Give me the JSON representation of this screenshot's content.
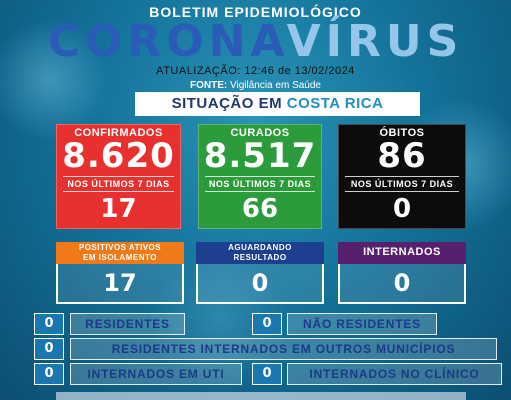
{
  "header": {
    "bulletin_title": "BOLETIM EPIDEMIOLÓGICO",
    "title_part_a": "CORONA",
    "title_part_b": "VÍRUS",
    "update_line": "ATUALIZAÇÃO: 12:46 de 13/02/2024",
    "source_label": "FONTE:",
    "source_value": "Vigilância em Saúde",
    "situation_label": "SITUAÇÃO EM",
    "place": "COSTA RICA"
  },
  "cards": {
    "confirmed": {
      "label": "CONFIRMADOS",
      "value": "8.620",
      "sub_label": "NOS ÚLTIMOS 7 DIAS",
      "sub_value": "17",
      "color": "#e8302e"
    },
    "cured": {
      "label": "CURADOS",
      "value": "8.517",
      "sub_label": "NOS ÚLTIMOS 7 DIAS",
      "sub_value": "66",
      "color": "#2b9b3b"
    },
    "deaths": {
      "label": "ÓBITOS",
      "value": "86",
      "sub_label": "NOS ÚLTIMOS 7 DIAS",
      "sub_value": "0",
      "color": "#0e0b0c"
    }
  },
  "status": {
    "isolation": {
      "label_line1": "POSITIVOS ATIVOS",
      "label_line2": "EM ISOLAMENTO",
      "value": "17",
      "color": "#f07a1a"
    },
    "awaiting": {
      "label_line1": "AGUARDANDO",
      "label_line2": "RESULTADO",
      "value": "0",
      "color": "#1d3f8f"
    },
    "hospitalized": {
      "label": "INTERNADOS",
      "value": "0",
      "color": "#56206c"
    }
  },
  "details": {
    "residents": {
      "value": "0",
      "label": "RESIDENTES"
    },
    "non_residents": {
      "value": "0",
      "label": "NÃO RESIDENTES"
    },
    "other_municipalities": {
      "value": "0",
      "label": "RESIDENTES INTERNADOS EM OUTROS MUNICÍPIOS"
    },
    "icu": {
      "value": "0",
      "label": "INTERNADOS EM UTI"
    },
    "clinic": {
      "value": "0",
      "label": "INTERNADOS NO CLÍNICO"
    }
  }
}
